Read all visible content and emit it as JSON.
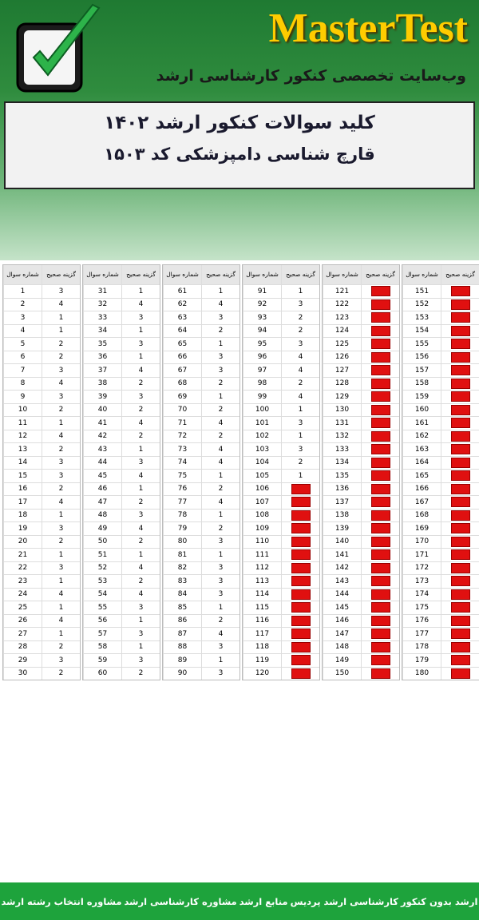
{
  "header": {
    "brand": "MasterTest",
    "tagline": "وب‌سایت تخصصی کنکور کارشناسی ارشد"
  },
  "title_box": {
    "line1": "کلید سوالات کنکور ارشد ۱۴۰۲",
    "line2": "قارچ شناسی دامپزشکی کد ۱۵۰۳"
  },
  "table": {
    "column_headers": [
      "شماره سوال",
      "گزینه صحیح"
    ],
    "blocks": [
      {
        "numbers": [
          1,
          2,
          3,
          4,
          5,
          6,
          7,
          8,
          9,
          10,
          11,
          12,
          13,
          14,
          15,
          16,
          17,
          18,
          19,
          20,
          21,
          22,
          23,
          24,
          25,
          26,
          27,
          28,
          29,
          30
        ],
        "answers": [
          3,
          4,
          1,
          1,
          2,
          2,
          3,
          4,
          3,
          2,
          1,
          4,
          2,
          3,
          3,
          2,
          4,
          1,
          3,
          2,
          1,
          3,
          1,
          4,
          1,
          4,
          1,
          2,
          3,
          2
        ]
      },
      {
        "numbers": [
          31,
          32,
          33,
          34,
          35,
          36,
          37,
          38,
          39,
          40,
          41,
          42,
          43,
          44,
          45,
          46,
          47,
          48,
          49,
          50,
          51,
          52,
          53,
          54,
          55,
          56,
          57,
          58,
          59,
          60
        ],
        "answers": [
          1,
          4,
          3,
          1,
          3,
          1,
          4,
          2,
          3,
          2,
          4,
          2,
          1,
          3,
          4,
          1,
          2,
          3,
          4,
          2,
          1,
          4,
          2,
          4,
          3,
          1,
          3,
          1,
          3,
          2
        ]
      },
      {
        "numbers": [
          61,
          62,
          63,
          64,
          65,
          66,
          67,
          68,
          69,
          70,
          71,
          72,
          73,
          74,
          75,
          76,
          77,
          78,
          79,
          80,
          81,
          82,
          83,
          84,
          85,
          86,
          87,
          88,
          89,
          90
        ],
        "answers": [
          1,
          4,
          3,
          2,
          1,
          3,
          3,
          2,
          1,
          2,
          4,
          2,
          4,
          4,
          1,
          2,
          4,
          1,
          2,
          3,
          1,
          3,
          3,
          3,
          1,
          2,
          4,
          3,
          1,
          3
        ]
      },
      {
        "numbers": [
          91,
          92,
          93,
          94,
          95,
          96,
          97,
          98,
          99,
          100,
          101,
          102,
          103,
          104,
          105,
          106,
          107,
          108,
          109,
          110,
          111,
          112,
          113,
          114,
          115,
          116,
          117,
          118,
          119,
          120
        ],
        "answers": [
          1,
          3,
          2,
          2,
          3,
          4,
          4,
          2,
          4,
          1,
          3,
          1,
          3,
          2,
          1,
          null,
          null,
          null,
          null,
          null,
          null,
          null,
          null,
          null,
          null,
          null,
          null,
          null,
          null,
          null
        ]
      },
      {
        "numbers": [
          121,
          122,
          123,
          124,
          125,
          126,
          127,
          128,
          129,
          130,
          131,
          132,
          133,
          134,
          135,
          136,
          137,
          138,
          139,
          140,
          141,
          142,
          143,
          144,
          145,
          146,
          147,
          148,
          149,
          150
        ],
        "answers": [
          null,
          null,
          null,
          null,
          null,
          null,
          null,
          null,
          null,
          null,
          null,
          null,
          null,
          null,
          null,
          null,
          null,
          null,
          null,
          null,
          null,
          null,
          null,
          null,
          null,
          null,
          null,
          null,
          null,
          null
        ]
      },
      {
        "numbers": [
          151,
          152,
          153,
          154,
          155,
          156,
          157,
          158,
          159,
          160,
          161,
          162,
          163,
          164,
          165,
          166,
          167,
          168,
          169,
          170,
          171,
          172,
          173,
          174,
          175,
          176,
          177,
          178,
          179,
          180
        ],
        "answers": [
          null,
          null,
          null,
          null,
          null,
          null,
          null,
          null,
          null,
          null,
          null,
          null,
          null,
          null,
          null,
          null,
          null,
          null,
          null,
          null,
          null,
          null,
          null,
          null,
          null,
          null,
          null,
          null,
          null,
          null
        ]
      }
    ]
  },
  "footer": {
    "links": [
      "ارشد بدون کنکور",
      "کارشناسی ارشد پردیس",
      "منابع ارشد",
      "مشاوره کارشناسی ارشد",
      "مشاوره انتخاب رشته ارشد"
    ]
  }
}
